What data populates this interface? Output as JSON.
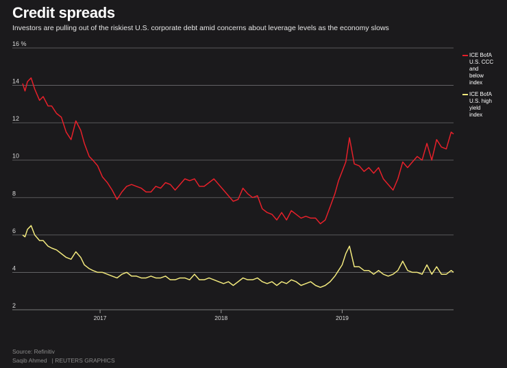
{
  "header": {
    "title": "Credit spreads",
    "subtitle": "Investors are pulling out of the riskiest U.S. corporate debt amid concerns about leverage levels as the economy slows"
  },
  "footer": {
    "source": "Source: Refinitiv",
    "credit": "Saqib Ahmed",
    "brand": "| REUTERS GRAPHICS"
  },
  "chart_data": {
    "type": "line",
    "title": "Credit spreads",
    "xlabel": "",
    "ylabel": "%",
    "ylim": [
      2,
      16
    ],
    "xlim": [
      2016.36,
      2019.92
    ],
    "yticks": [
      {
        "value": 16,
        "label": "16 %"
      },
      {
        "value": 14,
        "label": "14"
      },
      {
        "value": 12,
        "label": "12"
      },
      {
        "value": 10,
        "label": "10"
      },
      {
        "value": 8,
        "label": "8"
      },
      {
        "value": 6,
        "label": "6"
      },
      {
        "value": 4,
        "label": "4"
      },
      {
        "value": 2,
        "label": "2"
      }
    ],
    "xticks": [
      {
        "value": 2017.0,
        "label": "2017"
      },
      {
        "value": 2018.0,
        "label": "2018"
      },
      {
        "value": 2019.0,
        "label": "2019"
      }
    ],
    "grid": true,
    "legend_position": "right",
    "series": [
      {
        "name": "ICE BofA U.S. CCC and below index",
        "legend_lines": [
          "ICE BofA",
          "U.S. CCC",
          "and",
          "below",
          "index"
        ],
        "color": "#e8202a",
        "x": [
          2016.36,
          2016.38,
          2016.4,
          2016.43,
          2016.46,
          2016.5,
          2016.53,
          2016.57,
          2016.6,
          2016.64,
          2016.68,
          2016.72,
          2016.76,
          2016.8,
          2016.84,
          2016.87,
          2016.91,
          2016.94,
          2016.98,
          2017.02,
          2017.06,
          2017.1,
          2017.14,
          2017.18,
          2017.22,
          2017.26,
          2017.3,
          2017.34,
          2017.38,
          2017.42,
          2017.46,
          2017.5,
          2017.54,
          2017.58,
          2017.62,
          2017.66,
          2017.7,
          2017.74,
          2017.78,
          2017.82,
          2017.86,
          2017.9,
          2017.94,
          2017.98,
          2018.02,
          2018.06,
          2018.1,
          2018.14,
          2018.18,
          2018.22,
          2018.26,
          2018.3,
          2018.34,
          2018.38,
          2018.42,
          2018.46,
          2018.5,
          2018.54,
          2018.58,
          2018.62,
          2018.66,
          2018.7,
          2018.74,
          2018.78,
          2018.82,
          2018.86,
          2018.9,
          2018.94,
          2018.97,
          2019.0,
          2019.03,
          2019.06,
          2019.1,
          2019.14,
          2019.18,
          2019.22,
          2019.26,
          2019.3,
          2019.34,
          2019.38,
          2019.42,
          2019.46,
          2019.5,
          2019.54,
          2019.58,
          2019.62,
          2019.66,
          2019.7,
          2019.74,
          2019.78,
          2019.82,
          2019.86,
          2019.9,
          2019.92
        ],
        "values": [
          14.1,
          13.7,
          14.2,
          14.4,
          13.8,
          13.2,
          13.4,
          12.9,
          12.9,
          12.5,
          12.3,
          11.5,
          11.1,
          12.1,
          11.6,
          10.9,
          10.2,
          10.0,
          9.7,
          9.1,
          8.8,
          8.4,
          7.9,
          8.3,
          8.6,
          8.7,
          8.6,
          8.5,
          8.3,
          8.3,
          8.6,
          8.5,
          8.8,
          8.7,
          8.4,
          8.7,
          9.0,
          8.9,
          9.0,
          8.6,
          8.6,
          8.8,
          9.0,
          8.7,
          8.4,
          8.1,
          7.8,
          7.9,
          8.5,
          8.2,
          8.0,
          8.1,
          7.4,
          7.2,
          7.1,
          6.8,
          7.2,
          6.8,
          7.3,
          7.1,
          6.9,
          7.0,
          6.9,
          6.9,
          6.6,
          6.8,
          7.5,
          8.2,
          8.9,
          9.4,
          9.9,
          11.2,
          9.8,
          9.7,
          9.4,
          9.6,
          9.3,
          9.6,
          9.0,
          8.7,
          8.4,
          9.0,
          9.9,
          9.6,
          9.9,
          10.2,
          10.0,
          10.9,
          10.0,
          11.1,
          10.7,
          10.6,
          11.5,
          11.4
        ]
      },
      {
        "name": "ICE BofA U.S. high yield index",
        "legend_lines": [
          "ICE BofA",
          "U.S. high",
          "yield",
          "index"
        ],
        "color": "#f3ea7e",
        "x": [
          2016.36,
          2016.38,
          2016.4,
          2016.43,
          2016.46,
          2016.5,
          2016.53,
          2016.57,
          2016.6,
          2016.64,
          2016.68,
          2016.72,
          2016.76,
          2016.8,
          2016.84,
          2016.87,
          2016.91,
          2016.94,
          2016.98,
          2017.02,
          2017.06,
          2017.1,
          2017.14,
          2017.18,
          2017.22,
          2017.26,
          2017.3,
          2017.34,
          2017.38,
          2017.42,
          2017.46,
          2017.5,
          2017.54,
          2017.58,
          2017.62,
          2017.66,
          2017.7,
          2017.74,
          2017.78,
          2017.82,
          2017.86,
          2017.9,
          2017.94,
          2017.98,
          2018.02,
          2018.06,
          2018.1,
          2018.14,
          2018.18,
          2018.22,
          2018.26,
          2018.3,
          2018.34,
          2018.38,
          2018.42,
          2018.46,
          2018.5,
          2018.54,
          2018.58,
          2018.62,
          2018.66,
          2018.7,
          2018.74,
          2018.78,
          2018.82,
          2018.86,
          2018.9,
          2018.94,
          2018.97,
          2019.0,
          2019.03,
          2019.06,
          2019.1,
          2019.14,
          2019.18,
          2019.22,
          2019.26,
          2019.3,
          2019.34,
          2019.38,
          2019.42,
          2019.46,
          2019.5,
          2019.54,
          2019.58,
          2019.62,
          2019.66,
          2019.7,
          2019.74,
          2019.78,
          2019.82,
          2019.86,
          2019.9,
          2019.92
        ],
        "values": [
          6.0,
          5.9,
          6.3,
          6.5,
          6.0,
          5.7,
          5.7,
          5.4,
          5.3,
          5.2,
          5.0,
          4.8,
          4.7,
          5.1,
          4.8,
          4.4,
          4.2,
          4.1,
          4.0,
          4.0,
          3.9,
          3.8,
          3.7,
          3.9,
          4.0,
          3.8,
          3.8,
          3.7,
          3.7,
          3.8,
          3.7,
          3.7,
          3.8,
          3.6,
          3.6,
          3.7,
          3.7,
          3.6,
          3.9,
          3.6,
          3.6,
          3.7,
          3.6,
          3.5,
          3.4,
          3.5,
          3.3,
          3.5,
          3.7,
          3.6,
          3.6,
          3.7,
          3.5,
          3.4,
          3.5,
          3.3,
          3.5,
          3.4,
          3.6,
          3.5,
          3.3,
          3.4,
          3.5,
          3.3,
          3.2,
          3.3,
          3.5,
          3.8,
          4.1,
          4.4,
          5.0,
          5.4,
          4.3,
          4.3,
          4.1,
          4.1,
          3.9,
          4.1,
          3.9,
          3.8,
          3.9,
          4.1,
          4.6,
          4.1,
          4.0,
          4.0,
          3.9,
          4.4,
          3.9,
          4.3,
          3.9,
          3.9,
          4.1,
          4.0
        ]
      }
    ]
  }
}
